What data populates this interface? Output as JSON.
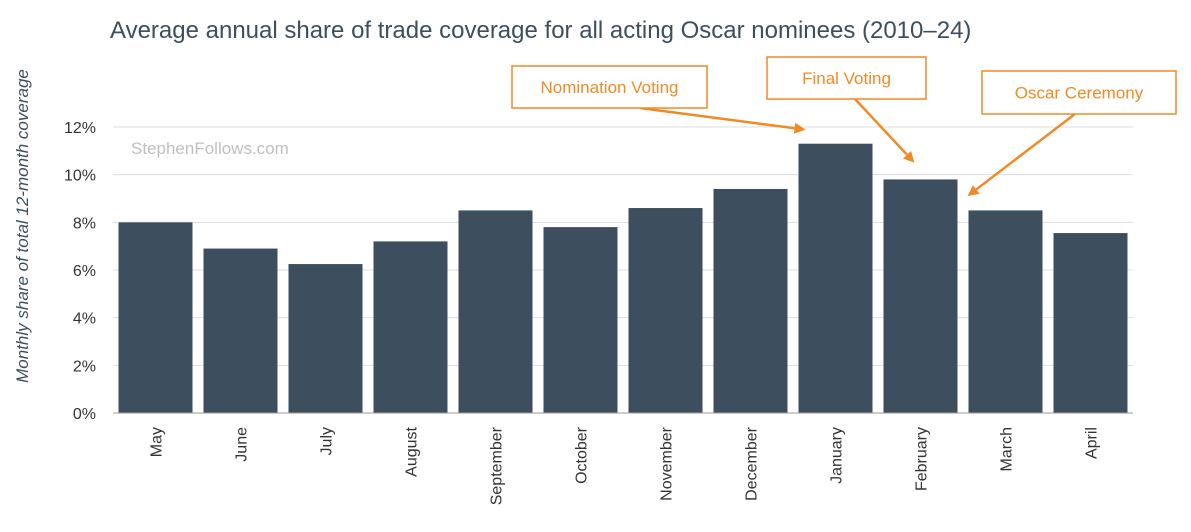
{
  "chart_data": {
    "type": "bar",
    "title": "Average annual share of trade coverage for all acting Oscar nominees (2010–24)",
    "ylabel": "Monthly share of total 12-month coverage",
    "xlabel": "",
    "categories": [
      "May",
      "June",
      "July",
      "August",
      "September",
      "October",
      "November",
      "December",
      "January",
      "February",
      "March",
      "April"
    ],
    "values": [
      8.0,
      6.9,
      6.25,
      7.2,
      8.5,
      7.8,
      8.6,
      9.4,
      11.3,
      9.8,
      8.5,
      7.55
    ],
    "ylim": [
      0,
      12
    ],
    "yticks": [
      0,
      2,
      4,
      6,
      8,
      10,
      12
    ],
    "ytick_labels": [
      "0%",
      "2%",
      "4%",
      "6%",
      "8%",
      "10%",
      "12%"
    ],
    "grid": true,
    "watermark": "StephenFollows.com",
    "annotations": [
      {
        "label": "Nomination Voting",
        "target_category": "January",
        "target_value": 11.3
      },
      {
        "label": "Final Voting",
        "target_category": "February",
        "target_value": 10.5
      },
      {
        "label": "Oscar Ceremony",
        "target_category": "March",
        "target_value": 9.1
      }
    ]
  },
  "colors": {
    "bar": "#3d4f5f",
    "annotation": "#f08a24",
    "grid": "#dddddd",
    "title": "#3d4f5f"
  }
}
